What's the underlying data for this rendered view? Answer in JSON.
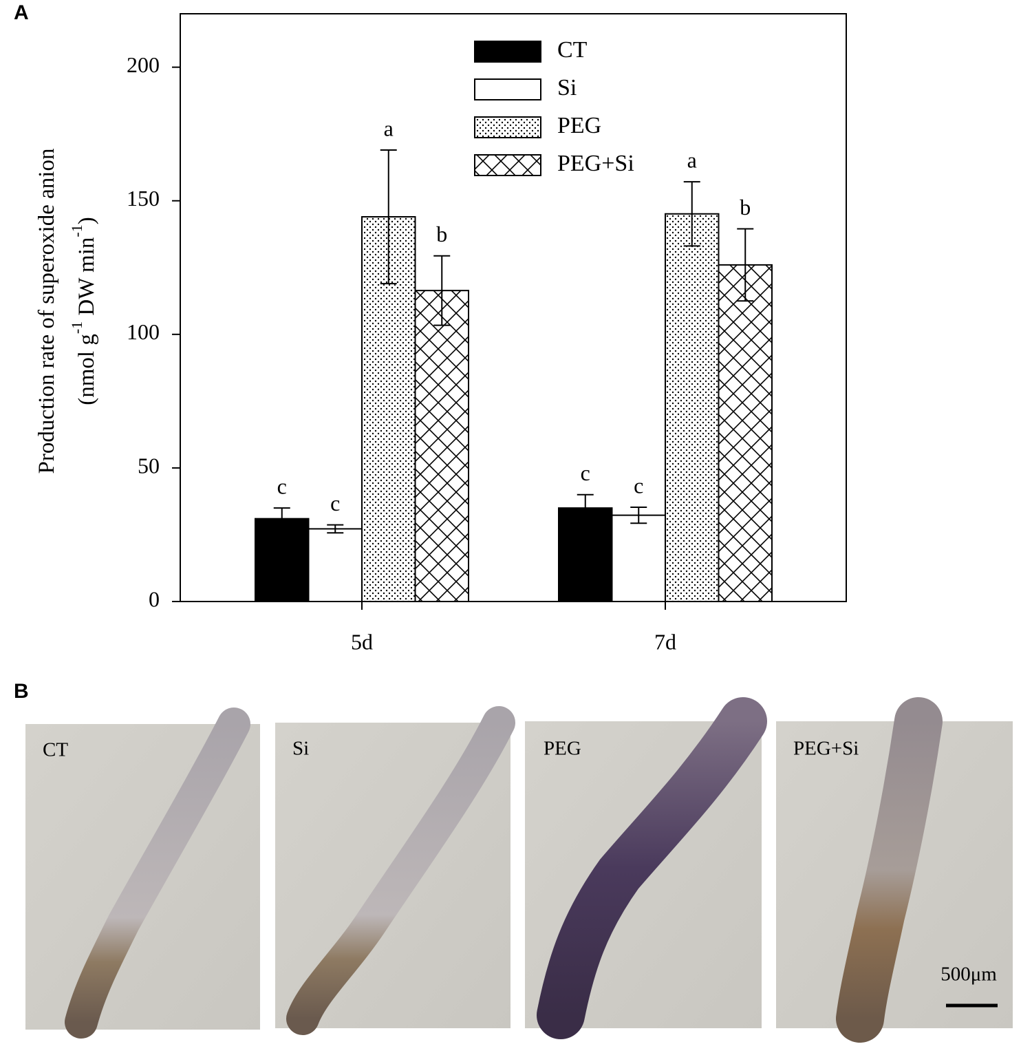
{
  "chart_data": {
    "type": "bar",
    "panel_label": "A",
    "y_label": [
      "Production rate of superoxide anion",
      "(nmol g",
      "-1",
      " DW min",
      "-1",
      ")"
    ],
    "categories": [
      "5d",
      "7d"
    ],
    "series": [
      {
        "name": "CT",
        "color": "#000000",
        "values": [
          31,
          35
        ],
        "errors": [
          4,
          5
        ],
        "letters": [
          "c",
          "c"
        ]
      },
      {
        "name": "Si",
        "color": "#ffffff",
        "values": [
          27.2,
          32.3
        ],
        "errors": [
          1.5,
          3
        ],
        "letters": [
          "c",
          "c"
        ]
      },
      {
        "name": "PEG",
        "color": "#ffffff",
        "pattern": "dots",
        "values": [
          144,
          145.1
        ],
        "errors": [
          25,
          12
        ],
        "letters": [
          "a",
          "a"
        ]
      },
      {
        "name": "PEG+Si",
        "color": "#ffffff",
        "pattern": "crosshatch",
        "values": [
          116.4,
          126
        ],
        "errors": [
          13,
          13.5
        ],
        "letters": [
          "b",
          "b"
        ]
      }
    ],
    "ylim": [
      0,
      220
    ],
    "yticks": [
      0,
      50,
      100,
      150,
      200
    ],
    "grid": false,
    "legend": "top"
  },
  "panel_b": {
    "label": "B",
    "images": [
      "CT",
      "Si",
      "PEG",
      "PEG+Si"
    ],
    "scale_bar": "500μm"
  }
}
